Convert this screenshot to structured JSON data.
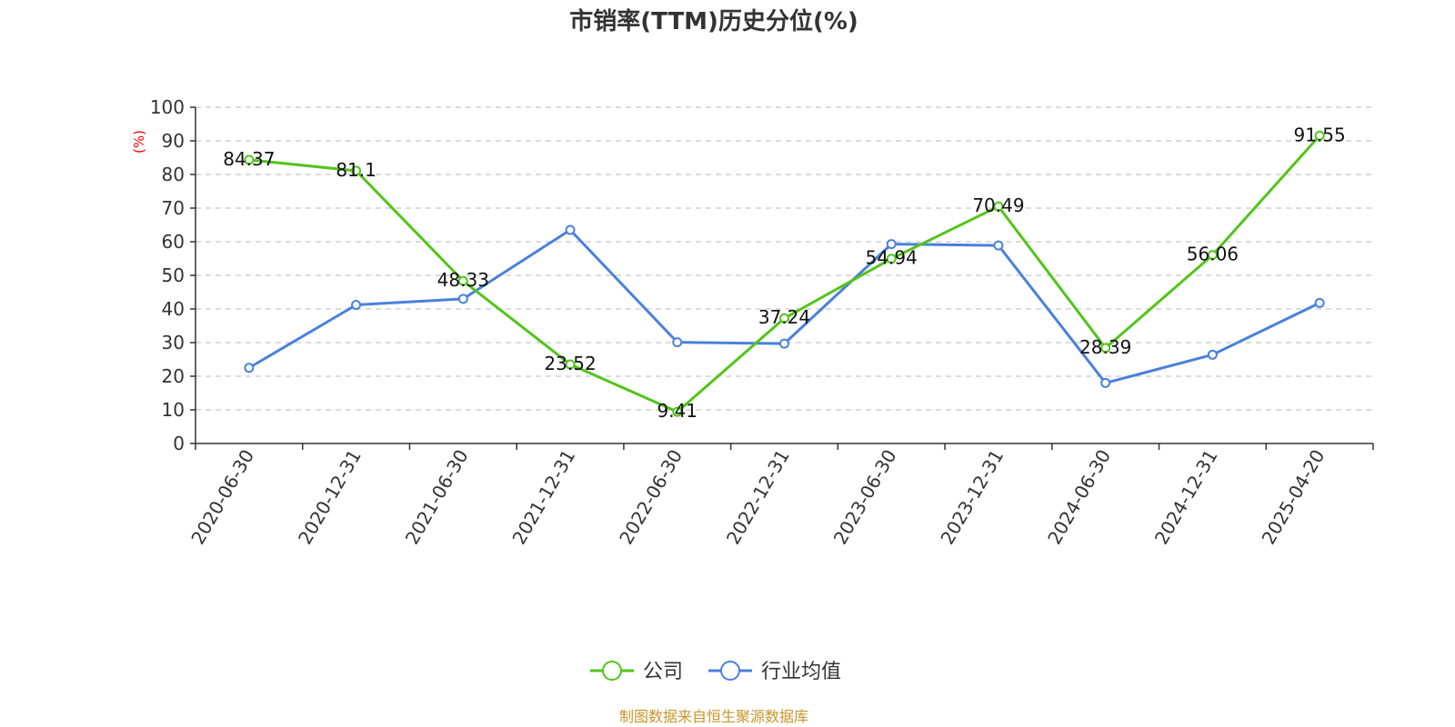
{
  "chart_data": {
    "type": "line",
    "title": "市销率(TTM)历史分位(%)",
    "ylabel": "(%)",
    "ylim": [
      0,
      100
    ],
    "yticks": [
      0,
      10,
      20,
      30,
      40,
      50,
      60,
      70,
      80,
      90,
      100
    ],
    "grid": true,
    "legend_position": "bottom-center",
    "categories": [
      "2020-06-30",
      "2020-12-31",
      "2021-06-30",
      "2021-12-31",
      "2022-06-30",
      "2022-12-31",
      "2023-06-30",
      "2023-12-31",
      "2024-06-30",
      "2024-12-31",
      "2025-04-20"
    ],
    "series": [
      {
        "name": "公司",
        "color": "#52c41a",
        "values": [
          84.37,
          81.1,
          48.33,
          23.52,
          9.41,
          37.24,
          54.94,
          70.49,
          28.39,
          56.06,
          91.55
        ],
        "labels": [
          "84.37",
          "81.1",
          "48.33",
          "23.52",
          "9.41",
          "37.24",
          "54.94",
          "70.49",
          "28.39",
          "56.06",
          "91.55"
        ]
      },
      {
        "name": "行业均值",
        "color": "#4a80dc",
        "values": [
          22.5,
          41.2,
          43.0,
          63.5,
          30.1,
          29.7,
          59.3,
          58.9,
          18.0,
          26.4,
          41.8
        ]
      }
    ]
  },
  "footer": "制图数据来自恒生聚源数据库"
}
